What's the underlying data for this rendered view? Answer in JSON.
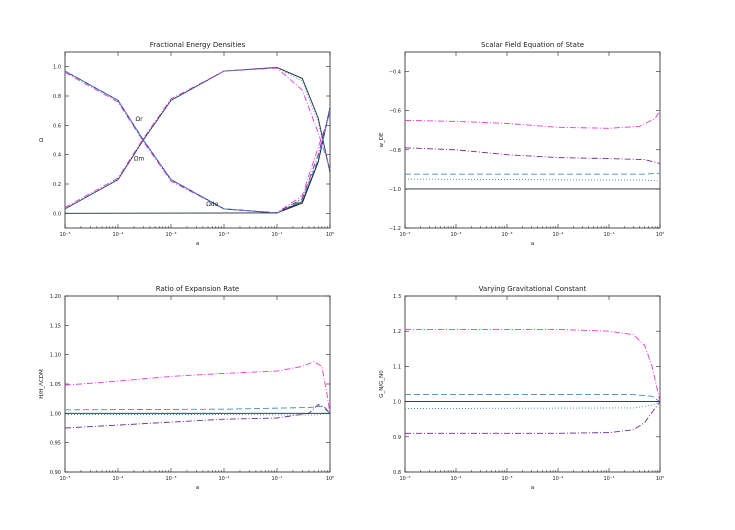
{
  "chart_data": [
    {
      "type": "line",
      "title": "Fractional Energy Densities",
      "xlabel": "a",
      "ylabel": "Ω",
      "xscale": "log",
      "xlim": [
        1e-05,
        1
      ],
      "ylim": [
        -0.1,
        1.1
      ],
      "xticks": [
        1e-05,
        0.0001,
        0.001,
        0.01,
        0.1,
        1
      ],
      "xtick_labels": [
        "10⁻⁵",
        "10⁻⁴",
        "10⁻³",
        "10⁻²",
        "10⁻¹",
        "10⁰"
      ],
      "yticks": [
        0.0,
        0.2,
        0.4,
        0.6,
        0.8,
        1.0
      ],
      "ytick_labels": [
        "0.0",
        "0.2",
        "0.4",
        "0.6",
        "0.8",
        "1.0"
      ],
      "annotations": [
        {
          "text": "Ωr",
          "x": 0.00025,
          "y": 0.63
        },
        {
          "text": "Ωm",
          "x": 0.00025,
          "y": 0.36
        },
        {
          "text": "Ωde",
          "x": 0.006,
          "y": 0.05
        }
      ],
      "series": [
        {
          "color": "#1b2a33",
          "style": "solid",
          "values": [
            [
              1e-05,
              0.97
            ],
            [
              0.0001,
              0.77
            ],
            [
              0.0003,
              0.5
            ],
            [
              0.001,
              0.23
            ],
            [
              0.01,
              0.03
            ],
            [
              0.1,
              0.002
            ],
            [
              0.3,
              0.08
            ],
            [
              0.6,
              0.35
            ],
            [
              1,
              0.72
            ]
          ]
        },
        {
          "color": "#1b2a33",
          "style": "solid",
          "values": [
            [
              1e-05,
              0.03
            ],
            [
              0.0001,
              0.23
            ],
            [
              0.0003,
              0.5
            ],
            [
              0.001,
              0.77
            ],
            [
              0.01,
              0.97
            ],
            [
              0.1,
              0.995
            ],
            [
              0.3,
              0.92
            ],
            [
              0.6,
              0.65
            ],
            [
              1,
              0.28
            ]
          ]
        },
        {
          "color": "#1b2a33",
          "style": "solid",
          "values": [
            [
              1e-05,
              0.0
            ],
            [
              0.1,
              0.003
            ],
            [
              0.3,
              0.07
            ],
            [
              0.6,
              0.35
            ],
            [
              1,
              0.72
            ]
          ]
        },
        {
          "color": "#e23ad8",
          "style": "dashdot",
          "values": [
            [
              1e-05,
              0.96
            ],
            [
              0.0001,
              0.76
            ],
            [
              0.0003,
              0.49
            ],
            [
              0.001,
              0.22
            ],
            [
              0.01,
              0.03
            ],
            [
              0.1,
              0.004
            ],
            [
              0.3,
              0.12
            ],
            [
              0.6,
              0.45
            ],
            [
              1,
              0.68
            ]
          ]
        },
        {
          "color": "#e23ad8",
          "style": "dashdot",
          "values": [
            [
              1e-05,
              0.04
            ],
            [
              0.0001,
              0.24
            ],
            [
              0.0003,
              0.51
            ],
            [
              0.001,
              0.78
            ],
            [
              0.01,
              0.97
            ],
            [
              0.1,
              0.99
            ],
            [
              0.3,
              0.84
            ],
            [
              0.6,
              0.55
            ],
            [
              1,
              0.3
            ]
          ]
        },
        {
          "color": "#6e2b8f",
          "style": "dashdot",
          "values": [
            [
              1e-05,
              0.97
            ],
            [
              0.0001,
              0.77
            ],
            [
              0.0003,
              0.5
            ],
            [
              0.001,
              0.23
            ],
            [
              0.01,
              0.03
            ],
            [
              0.1,
              0.003
            ],
            [
              0.3,
              0.1
            ],
            [
              0.6,
              0.4
            ],
            [
              1,
              0.7
            ]
          ]
        },
        {
          "color": "#3f8fc4",
          "style": "dashed",
          "values": [
            [
              1e-05,
              0.97
            ],
            [
              0.0001,
              0.77
            ],
            [
              0.0003,
              0.5
            ],
            [
              0.001,
              0.23
            ],
            [
              0.01,
              0.03
            ],
            [
              0.1,
              0.002
            ],
            [
              0.3,
              0.09
            ],
            [
              0.6,
              0.37
            ],
            [
              1,
              0.71
            ]
          ]
        },
        {
          "color": "#3f8fc4",
          "style": "dotted",
          "values": [
            [
              1e-05,
              0.03
            ],
            [
              0.0001,
              0.23
            ],
            [
              0.0003,
              0.5
            ],
            [
              0.001,
              0.77
            ],
            [
              0.01,
              0.97
            ],
            [
              0.1,
              0.993
            ],
            [
              0.3,
              0.9
            ],
            [
              0.6,
              0.62
            ],
            [
              1,
              0.29
            ]
          ]
        }
      ]
    },
    {
      "type": "line",
      "title": "Scalar Field Equation of State",
      "xlabel": "a",
      "ylabel": "w_DE",
      "xscale": "log",
      "xlim": [
        1e-05,
        1
      ],
      "ylim": [
        -1.2,
        -0.3
      ],
      "xticks": [
        1e-05,
        0.0001,
        0.001,
        0.01,
        0.1,
        1
      ],
      "xtick_labels": [
        "10⁻⁵",
        "10⁻⁴",
        "10⁻³",
        "10⁻²",
        "10⁻¹",
        "10⁰"
      ],
      "yticks": [
        -1.2,
        -1.0,
        -0.8,
        -0.6,
        -0.4
      ],
      "ytick_labels": [
        "−1.2",
        "−1.0",
        "−0.8",
        "−0.6",
        "−0.4"
      ],
      "series": [
        {
          "color": "#e23ad8",
          "style": "dashdot",
          "values": [
            [
              1e-05,
              -0.65
            ],
            [
              0.0001,
              -0.655
            ],
            [
              0.001,
              -0.665
            ],
            [
              0.01,
              -0.685
            ],
            [
              0.1,
              -0.69
            ],
            [
              0.4,
              -0.68
            ],
            [
              0.8,
              -0.64
            ],
            [
              1,
              -0.6
            ]
          ]
        },
        {
          "color": "#6e2b8f",
          "style": "dashdot",
          "values": [
            [
              1e-05,
              -0.79
            ],
            [
              0.0001,
              -0.8
            ],
            [
              0.001,
              -0.825
            ],
            [
              0.01,
              -0.84
            ],
            [
              0.1,
              -0.845
            ],
            [
              0.5,
              -0.85
            ],
            [
              1,
              -0.87
            ]
          ]
        },
        {
          "color": "#3f8fc4",
          "style": "dashed",
          "values": [
            [
              1e-05,
              -0.925
            ],
            [
              0.5,
              -0.925
            ],
            [
              1,
              -0.92
            ]
          ]
        },
        {
          "color": "#3f8fc4",
          "style": "dotted",
          "values": [
            [
              1e-05,
              -0.95
            ],
            [
              0.5,
              -0.955
            ],
            [
              1,
              -0.96
            ]
          ]
        },
        {
          "color": "#1b2a33",
          "style": "solid",
          "values": [
            [
              1e-05,
              -1.0
            ],
            [
              1,
              -1.0
            ]
          ]
        }
      ]
    },
    {
      "type": "line",
      "title": "Ratio of Expansion Rate",
      "xlabel": "a",
      "ylabel": "H/H_ΛCDM",
      "xscale": "log",
      "xlim": [
        1e-05,
        1
      ],
      "ylim": [
        0.9,
        1.2
      ],
      "xticks": [
        1e-05,
        0.0001,
        0.001,
        0.01,
        0.1,
        1
      ],
      "xtick_labels": [
        "10⁻⁵",
        "10⁻⁴",
        "10⁻³",
        "10⁻²",
        "10⁻¹",
        "10⁰"
      ],
      "yticks": [
        0.9,
        0.95,
        1.0,
        1.05,
        1.1,
        1.15,
        1.2
      ],
      "ytick_labels": [
        "0.90",
        "0.95",
        "1.00",
        "1.05",
        "1.10",
        "1.15",
        "1.20"
      ],
      "series": [
        {
          "color": "#e23ad8",
          "style": "dashdot",
          "values": [
            [
              1e-05,
              1.048
            ],
            [
              0.0001,
              1.055
            ],
            [
              0.001,
              1.063
            ],
            [
              0.01,
              1.068
            ],
            [
              0.1,
              1.072
            ],
            [
              0.3,
              1.08
            ],
            [
              0.5,
              1.088
            ],
            [
              0.7,
              1.08
            ],
            [
              0.85,
              1.04
            ],
            [
              1,
              1.0
            ]
          ]
        },
        {
          "color": "#6e2b8f",
          "style": "dashdot",
          "values": [
            [
              1e-05,
              0.975
            ],
            [
              0.0001,
              0.98
            ],
            [
              0.001,
              0.985
            ],
            [
              0.01,
              0.99
            ],
            [
              0.1,
              0.992
            ],
            [
              0.4,
              1.0
            ],
            [
              0.6,
              1.015
            ],
            [
              0.8,
              1.01
            ],
            [
              1,
              1.0
            ]
          ]
        },
        {
          "color": "#3f8fc4",
          "style": "dashed",
          "values": [
            [
              1e-05,
              1.006
            ],
            [
              0.01,
              1.007
            ],
            [
              0.4,
              1.01
            ],
            [
              0.7,
              1.012
            ],
            [
              1,
              1.0
            ]
          ]
        },
        {
          "color": "#3f8fc4",
          "style": "dotted",
          "values": [
            [
              1e-05,
              0.998
            ],
            [
              0.01,
              0.998
            ],
            [
              0.5,
              0.997
            ],
            [
              1,
              1.0
            ]
          ]
        },
        {
          "color": "#1b2a33",
          "style": "solid",
          "values": [
            [
              1e-05,
              1.0
            ],
            [
              1,
              1.0
            ]
          ]
        }
      ]
    },
    {
      "type": "line",
      "title": "Varying Gravitational Constant",
      "xlabel": "a",
      "ylabel": "G_N/G_N0",
      "xscale": "log",
      "xlim": [
        1e-05,
        1
      ],
      "ylim": [
        0.8,
        1.3
      ],
      "xticks": [
        1e-05,
        0.0001,
        0.001,
        0.01,
        0.1,
        1
      ],
      "xtick_labels": [
        "10⁻⁵",
        "10⁻⁴",
        "10⁻³",
        "10⁻²",
        "10⁻¹",
        "10⁰"
      ],
      "yticks": [
        0.8,
        0.9,
        1.0,
        1.1,
        1.2,
        1.3
      ],
      "ytick_labels": [
        "0.8",
        "0.9",
        "1.0",
        "1.1",
        "1.2",
        "1.3"
      ],
      "series": [
        {
          "color": "#e23ad8",
          "style": "dashdot",
          "values": [
            [
              1e-05,
              1.205
            ],
            [
              0.01,
              1.205
            ],
            [
              0.1,
              1.2
            ],
            [
              0.3,
              1.19
            ],
            [
              0.5,
              1.16
            ],
            [
              0.7,
              1.1
            ],
            [
              1,
              1.0
            ]
          ]
        },
        {
          "color": "#6e2b8f",
          "style": "dashdot",
          "values": [
            [
              1e-05,
              0.91
            ],
            [
              0.01,
              0.91
            ],
            [
              0.1,
              0.912
            ],
            [
              0.3,
              0.92
            ],
            [
              0.5,
              0.94
            ],
            [
              0.7,
              0.97
            ],
            [
              1,
              1.0
            ]
          ]
        },
        {
          "color": "#3f8fc4",
          "style": "dashed",
          "values": [
            [
              1e-05,
              1.02
            ],
            [
              0.3,
              1.02
            ],
            [
              0.7,
              1.015
            ],
            [
              1,
              1.0
            ]
          ]
        },
        {
          "color": "#3f8fc4",
          "style": "dotted",
          "values": [
            [
              1e-05,
              0.98
            ],
            [
              0.3,
              0.982
            ],
            [
              0.7,
              0.99
            ],
            [
              1,
              1.0
            ]
          ]
        },
        {
          "color": "#1b2a33",
          "style": "solid",
          "values": [
            [
              1e-05,
              1.0
            ],
            [
              1,
              1.0
            ]
          ]
        }
      ]
    }
  ]
}
